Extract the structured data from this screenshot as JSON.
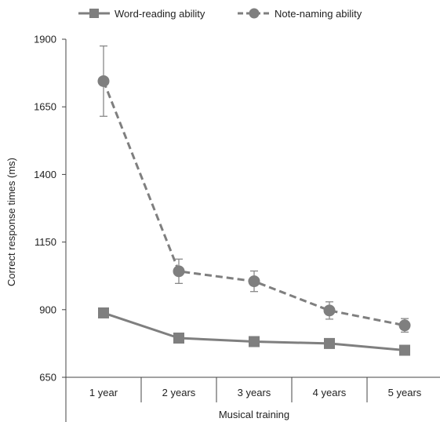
{
  "chart_data": {
    "type": "line",
    "title": "",
    "xlabel": "Musical training",
    "ylabel": "Correct response times (ms)",
    "categories": [
      "1 year",
      "2 years",
      "3 years",
      "4 years",
      "5 years"
    ],
    "yticks": [
      650,
      900,
      1150,
      1400,
      1650,
      1900
    ],
    "ylim": [
      650,
      1900
    ],
    "grid": false,
    "legend_position": "top",
    "series": [
      {
        "name": "Word-reading ability",
        "values": [
          888,
          795,
          782,
          775,
          750
        ],
        "errors": [
          12,
          10,
          10,
          10,
          12
        ],
        "marker": "square",
        "line_style": "solid",
        "color": "#7f7f7f"
      },
      {
        "name": "Note-naming ability",
        "values": [
          1745,
          1042,
          1005,
          897,
          842
        ],
        "errors": [
          130,
          45,
          38,
          32,
          25
        ],
        "marker": "circle",
        "line_style": "dashed",
        "color": "#7f7f7f"
      }
    ]
  }
}
